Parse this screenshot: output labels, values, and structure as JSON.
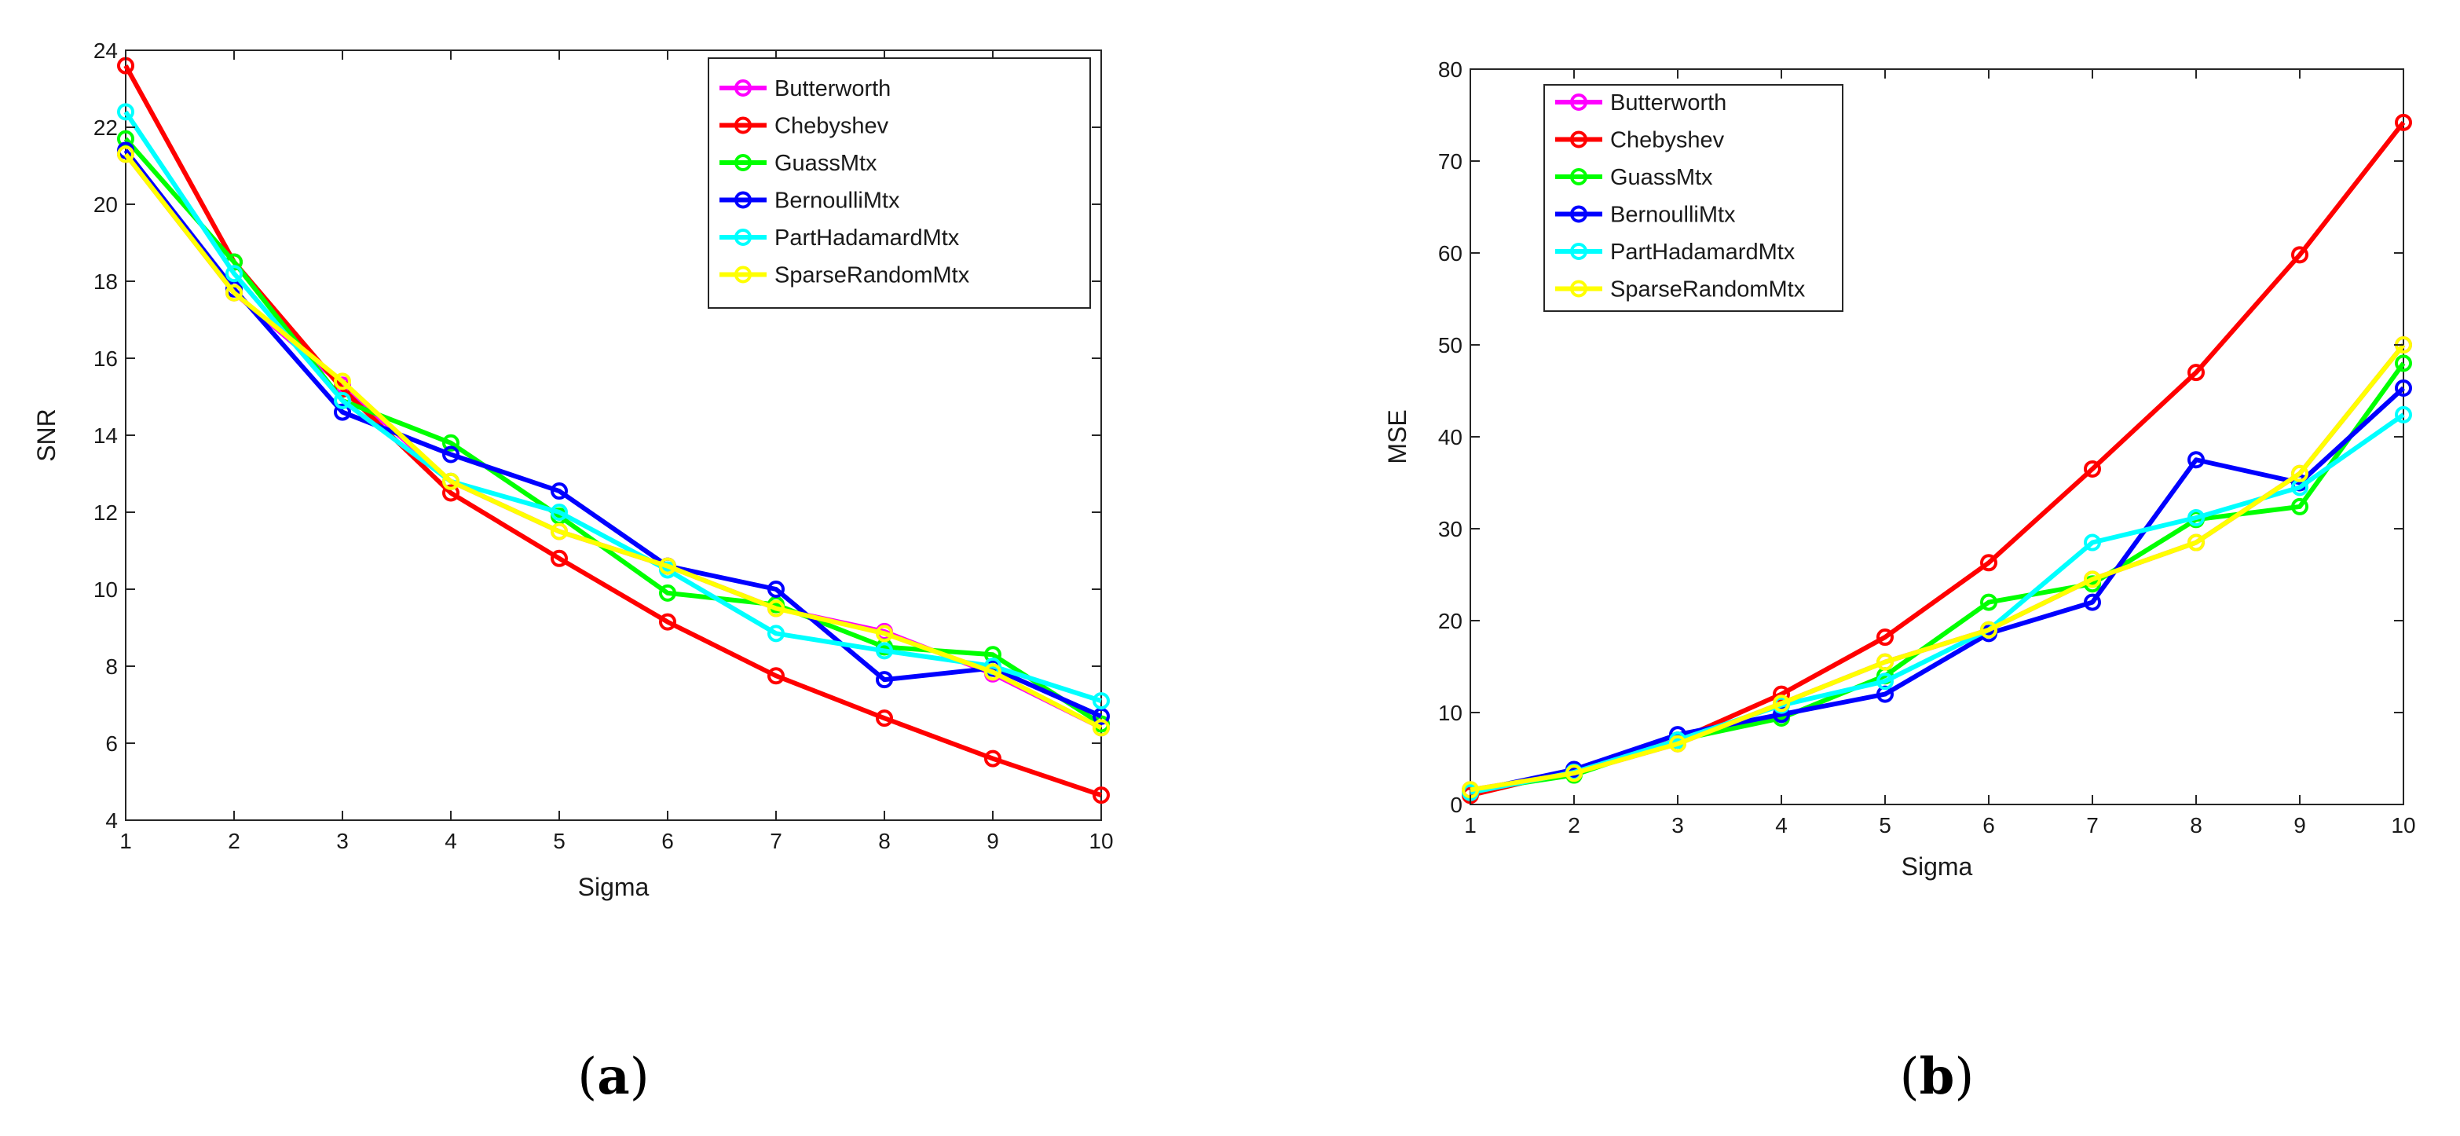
{
  "chart_data": [
    {
      "type": "line",
      "panel_label": "a",
      "title": "",
      "xlabel": "Sigma",
      "ylabel": "SNR",
      "x": [
        1,
        2,
        3,
        4,
        5,
        6,
        7,
        8,
        9,
        10
      ],
      "xlim": [
        1,
        10
      ],
      "ylim": [
        4,
        24
      ],
      "xticks": [
        1,
        2,
        3,
        4,
        5,
        6,
        7,
        8,
        9,
        10
      ],
      "yticks": [
        4,
        6,
        8,
        10,
        12,
        14,
        16,
        18,
        20,
        22,
        24
      ],
      "grid": false,
      "legend_position": "top-right",
      "series": [
        {
          "name": "Butterworth",
          "color": "#ff00ff",
          "values": [
            21.3,
            17.7,
            15.3,
            12.8,
            11.5,
            10.6,
            9.5,
            8.9,
            7.8,
            6.4
          ]
        },
        {
          "name": "Chebyshev",
          "color": "#ff0000",
          "values": [
            23.6,
            18.5,
            15.2,
            12.5,
            10.8,
            9.15,
            7.75,
            6.65,
            5.6,
            4.65
          ]
        },
        {
          "name": "GuassMtx",
          "color": "#00ff00",
          "values": [
            21.7,
            18.5,
            14.9,
            13.8,
            11.9,
            9.9,
            9.6,
            8.5,
            8.3,
            6.5
          ]
        },
        {
          "name": "BernoulliMtx",
          "color": "#0000ff",
          "values": [
            21.4,
            17.8,
            14.6,
            13.5,
            12.55,
            10.6,
            10.0,
            7.65,
            7.95,
            6.7
          ]
        },
        {
          "name": "PartHadamardMtx",
          "color": "#00ffff",
          "values": [
            22.4,
            18.2,
            14.9,
            12.8,
            12.0,
            10.5,
            8.85,
            8.4,
            8.0,
            7.1
          ]
        },
        {
          "name": "SparseRandomMtx",
          "color": "#ffff00",
          "values": [
            21.3,
            17.7,
            15.4,
            12.8,
            11.5,
            10.6,
            9.5,
            8.85,
            7.85,
            6.4
          ]
        }
      ]
    },
    {
      "type": "line",
      "panel_label": "b",
      "title": "",
      "xlabel": "Sigma",
      "ylabel": "MSE",
      "x": [
        1,
        2,
        3,
        4,
        5,
        6,
        7,
        8,
        9,
        10
      ],
      "xlim": [
        1,
        10
      ],
      "ylim": [
        0,
        80
      ],
      "xticks": [
        1,
        2,
        3,
        4,
        5,
        6,
        7,
        8,
        9,
        10
      ],
      "yticks": [
        0,
        10,
        20,
        30,
        40,
        50,
        60,
        70,
        80
      ],
      "grid": false,
      "legend_position": "top-right",
      "series": [
        {
          "name": "Butterworth",
          "color": "#ff00ff",
          "values": [
            1.6,
            3.4,
            6.6,
            11.0,
            15.5,
            19.0,
            24.5,
            28.5,
            36.0,
            50.0
          ]
        },
        {
          "name": "Chebyshev",
          "color": "#ff0000",
          "values": [
            1.0,
            3.7,
            7.0,
            12.0,
            18.2,
            26.3,
            36.5,
            47.0,
            59.8,
            74.2
          ]
        },
        {
          "name": "GuassMtx",
          "color": "#00ff00",
          "values": [
            1.5,
            3.2,
            7.0,
            9.4,
            14.0,
            22.0,
            24.0,
            31.0,
            32.4,
            48.0
          ]
        },
        {
          "name": "BernoulliMtx",
          "color": "#0000ff",
          "values": [
            1.4,
            3.8,
            7.6,
            9.8,
            12.0,
            18.6,
            22.0,
            37.5,
            35.0,
            45.3
          ]
        },
        {
          "name": "PartHadamardMtx",
          "color": "#00ffff",
          "values": [
            1.3,
            3.5,
            7.0,
            10.8,
            13.4,
            19.0,
            28.5,
            31.2,
            34.5,
            42.4
          ]
        },
        {
          "name": "SparseRandomMtx",
          "color": "#ffff00",
          "values": [
            1.6,
            3.4,
            6.6,
            11.0,
            15.5,
            19.0,
            24.5,
            28.5,
            36.0,
            50.0
          ]
        }
      ]
    }
  ]
}
